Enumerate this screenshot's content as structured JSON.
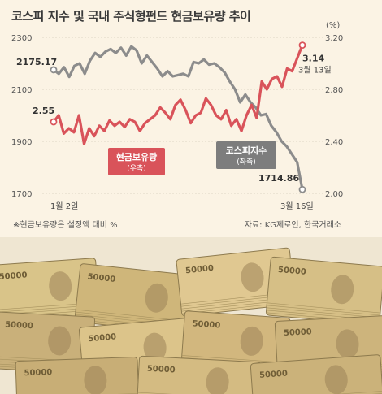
{
  "title": "코스피 지수 및 국내 주식형펀드 현금보유량 추이",
  "footnote": "※현금보유량은 설정액 대비 %",
  "source": "자료: KG제로인, 한국거래소",
  "colors": {
    "kospi": "#8c8c8c",
    "cash": "#d9535a",
    "grid": "#dcd4c4",
    "background": "#fbf3e4"
  },
  "chart_data": {
    "type": "line",
    "title": "코스피 지수 및 국내 주식형펀드 현금보유량 추이",
    "x_start_label": "1월 2일",
    "x_end_label": "3월 16일",
    "left_axis": {
      "ticks": [
        "2300",
        "2100",
        "1900",
        "1700"
      ],
      "ylim": [
        1700,
        2300
      ]
    },
    "right_axis": {
      "unit": "(%)",
      "ticks": [
        "3.20",
        "2.80",
        "2.40",
        "2.00"
      ],
      "ylim": [
        2.0,
        3.2
      ]
    },
    "grid": true,
    "series": [
      {
        "name": "코스피지수",
        "axis_note": "(좌측)",
        "axis": "left",
        "start_label": "2175.17",
        "end_label": "1714.86",
        "values": [
          2175.17,
          2160,
          2185,
          2148,
          2190,
          2200,
          2160,
          2210,
          2240,
          2225,
          2245,
          2255,
          2240,
          2260,
          2230,
          2265,
          2250,
          2200,
          2230,
          2205,
          2180,
          2150,
          2170,
          2150,
          2155,
          2160,
          2150,
          2205,
          2200,
          2215,
          2195,
          2200,
          2185,
          2165,
          2130,
          2100,
          2050,
          2080,
          2050,
          2030,
          2000,
          2005,
          1960,
          1935,
          1900,
          1880,
          1850,
          1820,
          1714.86
        ]
      },
      {
        "name": "현금보유량",
        "axis_note": "(우측)",
        "axis": "right",
        "start_label": "2.55",
        "end_label": "3.14",
        "end_date_label": "3월 13일",
        "values": [
          2.55,
          2.6,
          2.46,
          2.5,
          2.47,
          2.6,
          2.38,
          2.5,
          2.44,
          2.52,
          2.48,
          2.56,
          2.52,
          2.55,
          2.51,
          2.57,
          2.55,
          2.48,
          2.54,
          2.57,
          2.6,
          2.66,
          2.62,
          2.57,
          2.68,
          2.72,
          2.64,
          2.54,
          2.6,
          2.62,
          2.73,
          2.68,
          2.6,
          2.57,
          2.64,
          2.52,
          2.57,
          2.48,
          2.6,
          2.68,
          2.58,
          2.86,
          2.8,
          2.88,
          2.9,
          2.82,
          2.96,
          2.94,
          3.04,
          3.14
        ]
      }
    ]
  },
  "photo": {
    "description_icon": "korean-50000-won-banknote-bundles",
    "bundle_label": "50000"
  }
}
